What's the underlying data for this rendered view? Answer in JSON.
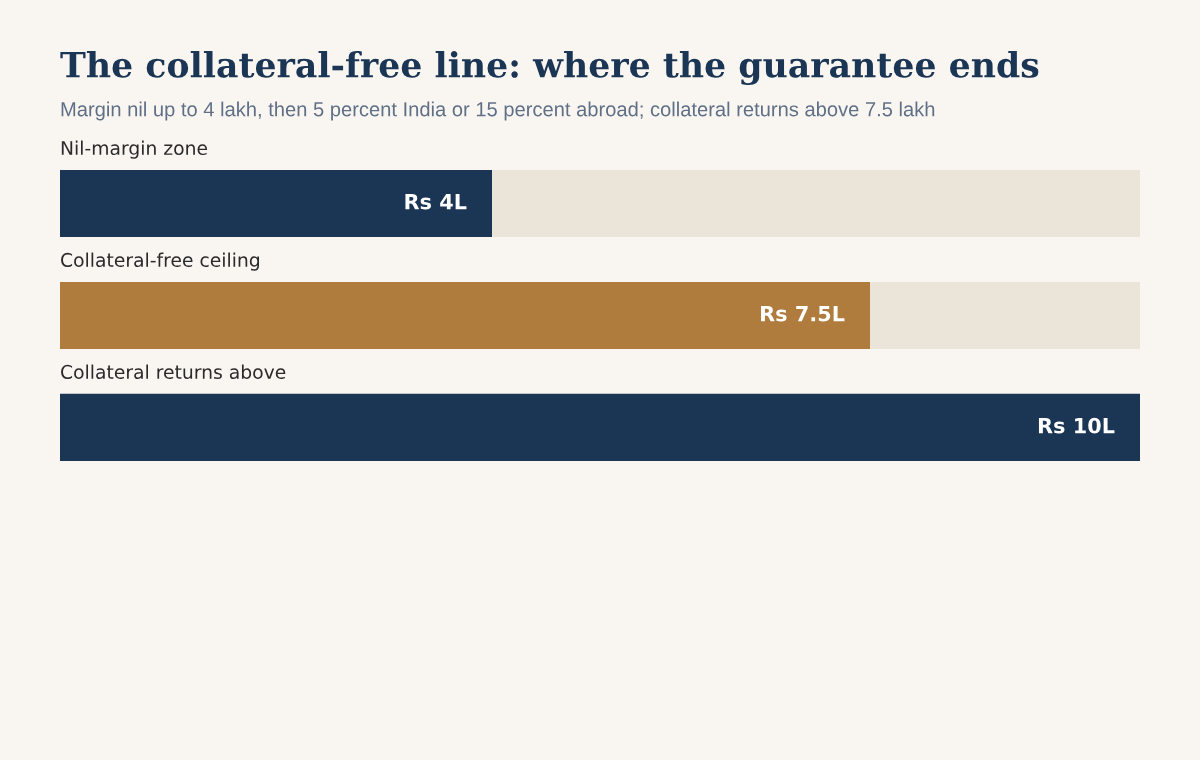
{
  "chart_data": {
    "type": "bar",
    "orientation": "horizontal",
    "stacked": true,
    "title": "The collateral-free line: where the guarantee ends",
    "subtitle": "Margin nil up to 4 lakh, then 5 percent India or 15 percent abroad; collateral returns above 7.5 lakh",
    "categories": [
      "Nil-margin zone",
      "Collateral-free ceiling",
      "Collateral returns above"
    ],
    "series": [
      {
        "colors": [
          "#1b3555",
          "#b07c3d",
          "#1b3555"
        ],
        "values": [
          4,
          7.5,
          10
        ],
        "value_labels": [
          "Rs 4L",
          "Rs 7.5L",
          "Rs 10L"
        ]
      },
      {
        "color": "#ebe4d9",
        "values": [
          6,
          2.5,
          0
        ]
      }
    ],
    "xlim": [
      0,
      10
    ]
  }
}
